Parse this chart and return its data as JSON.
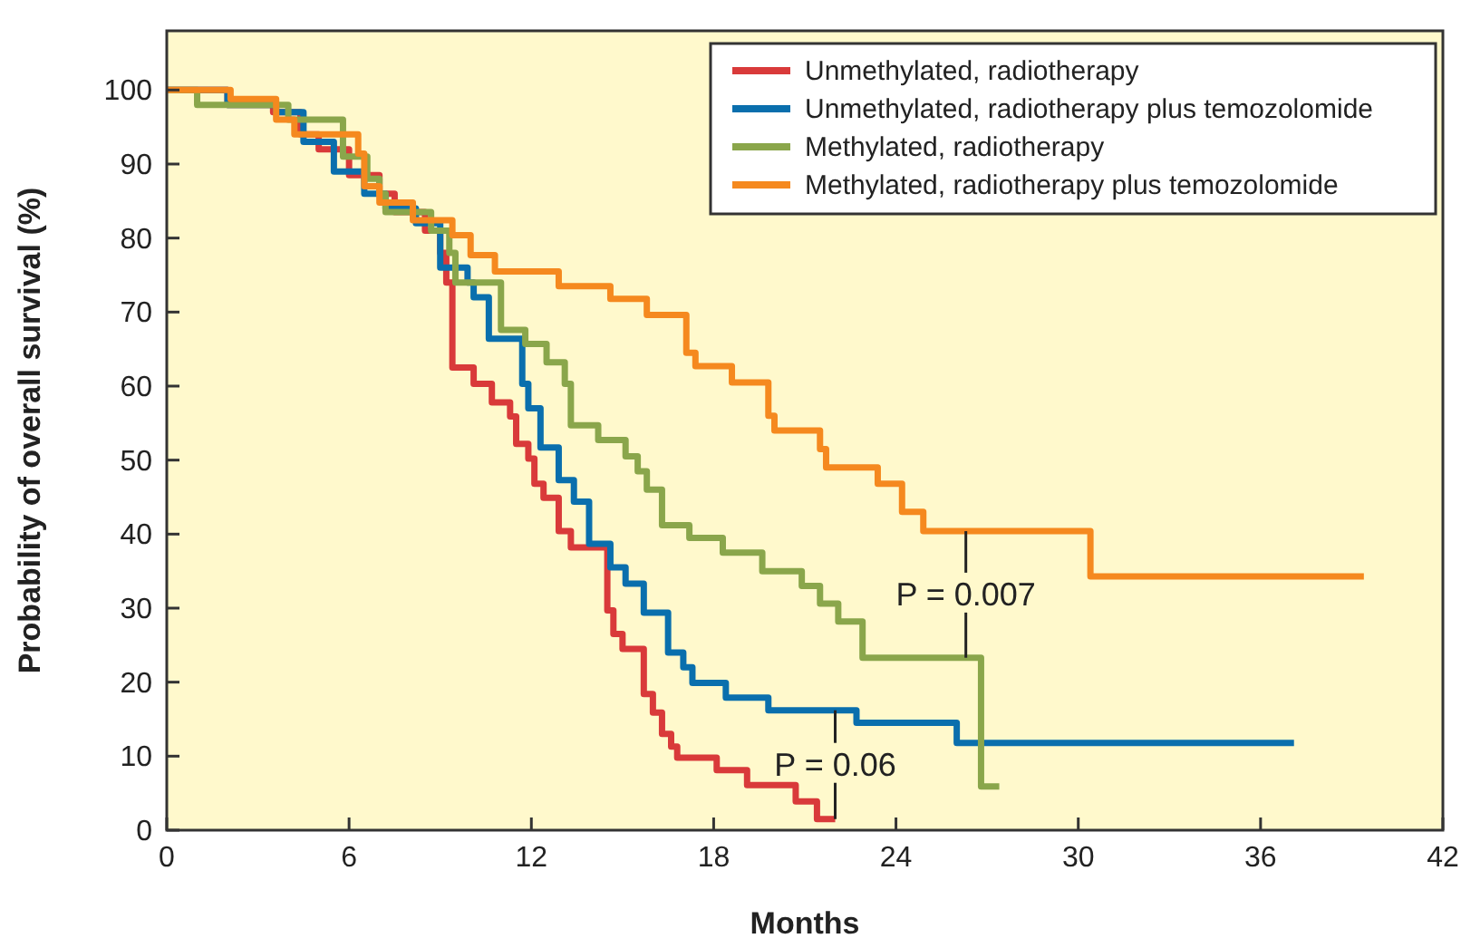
{
  "chart_data": {
    "type": "step",
    "xlabel": "Months",
    "ylabel": "Probability of overall survival (%)",
    "xlim": [
      0,
      42
    ],
    "ylim": [
      0,
      108
    ],
    "xticks": [
      0,
      6,
      12,
      18,
      24,
      30,
      36,
      42
    ],
    "yticks": [
      0,
      10,
      20,
      30,
      40,
      50,
      60,
      70,
      80,
      90,
      100
    ],
    "grid": false,
    "legend": "top right",
    "series": [
      {
        "name": "Unmethylated, radiotherapy",
        "color": "#d93a3a",
        "x": [
          0,
          2,
          3.5,
          4.4,
          5,
          6,
          7,
          7.5,
          8.5,
          9,
          9.2,
          9.4,
          10.1,
          10.7,
          11.3,
          11.5,
          11.9,
          12.1,
          12.4,
          12.9,
          13.3,
          14.5,
          14.7,
          15,
          15.7,
          16,
          16.3,
          16.6,
          16.8,
          18.1,
          19.1,
          20.7,
          21.4,
          22
        ],
        "values": [
          100,
          98,
          97,
          94,
          92,
          88.5,
          86,
          83.5,
          81,
          78,
          74,
          62.5,
          60.3,
          57.8,
          55.9,
          52.2,
          50.2,
          46.8,
          44.9,
          40.4,
          38.2,
          29.7,
          26.5,
          24.5,
          18.4,
          15.9,
          13,
          11.3,
          9.8,
          8.1,
          6.1,
          3.9,
          1.5,
          1.5
        ]
      },
      {
        "name": "Unmethylated, radiotherapy plus temozolomide",
        "color": "#0a6fad",
        "x": [
          0,
          2,
          3.6,
          4.5,
          5.5,
          6.5,
          7.2,
          8.2,
          9,
          9.9,
          10.1,
          10.6,
          11.7,
          11.9,
          12.3,
          12.9,
          13.4,
          13.9,
          14.6,
          15.1,
          15.7,
          16.5,
          17,
          17.3,
          18.4,
          19.8,
          22.7,
          26,
          37.1
        ],
        "values": [
          100,
          98,
          97,
          93,
          89,
          86,
          84,
          82,
          76,
          74,
          72,
          66.4,
          60.3,
          57,
          51.7,
          47.3,
          44.4,
          38.7,
          35.5,
          33.3,
          29.4,
          24,
          22,
          19.9,
          17.9,
          16.2,
          14.5,
          11.8,
          11.8
        ]
      },
      {
        "name": "Methylated, radiotherapy",
        "color": "#8aa64b",
        "x": [
          0,
          1,
          4,
          5.8,
          6.6,
          7,
          7.2,
          8.7,
          9.3,
          9.5,
          11,
          11.8,
          12.5,
          13.1,
          13.3,
          14.2,
          15.1,
          15.5,
          15.8,
          16.3,
          17.2,
          18.3,
          19.6,
          20.9,
          21.5,
          22.1,
          22.9,
          26.8,
          27.4
        ],
        "values": [
          100,
          98,
          96,
          91,
          88,
          86,
          83.5,
          81,
          78,
          74,
          67.6,
          65.7,
          63.2,
          60.3,
          54.7,
          52.7,
          50.5,
          48.5,
          46,
          41.2,
          39.5,
          37.5,
          35,
          33,
          30.6,
          28.2,
          23.3,
          5.9,
          5.9
        ]
      },
      {
        "name": "Methylated, radiotherapy plus temozolomide",
        "color": "#f5891f",
        "x": [
          0,
          2.1,
          3.6,
          4.2,
          6.3,
          6.5,
          7,
          8.1,
          9.4,
          10,
          10.8,
          12.9,
          14.6,
          15.8,
          17.1,
          17.4,
          18.6,
          19.8,
          20,
          21.5,
          21.7,
          23.4,
          24.2,
          24.9,
          30.4,
          39.4
        ],
        "values": [
          100,
          98.8,
          96,
          94,
          91.4,
          87,
          84.8,
          82.4,
          80.4,
          77.7,
          75.5,
          73.5,
          71.8,
          69.6,
          64.5,
          62.7,
          60.5,
          56,
          54,
          51.5,
          49,
          46.8,
          43,
          40.4,
          34.3,
          34.3
        ]
      }
    ],
    "annotations": [
      {
        "text": "P = 0.007",
        "x": 26.3,
        "y": 40.4
      },
      {
        "text": "P = 0.06",
        "x": 22,
        "y": 16.2
      }
    ]
  }
}
